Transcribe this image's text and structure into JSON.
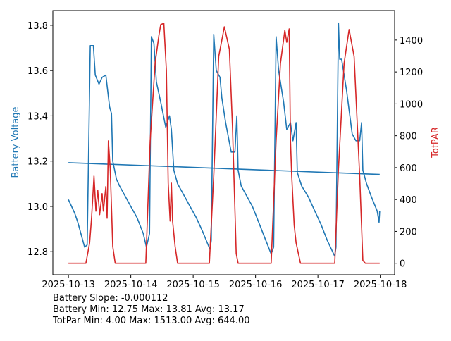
{
  "chart_data": {
    "type": "line",
    "title": "",
    "xlabel": "",
    "ylabel_left": "Battery Voltage",
    "ylabel_right": "TotPAR",
    "x_origin_date": "2025-10-13",
    "x_units": "days since 2025-10-13",
    "xlim": [
      -0.25,
      5.23
    ],
    "ylim_left": [
      12.698,
      13.865
    ],
    "ylim_right": [
      -72,
      1585
    ],
    "x_ticks": [
      {
        "value": 0,
        "label": "2025-10-13"
      },
      {
        "value": 1,
        "label": "2025-10-14"
      },
      {
        "value": 2,
        "label": "2025-10-15"
      },
      {
        "value": 3,
        "label": "2025-10-16"
      },
      {
        "value": 4,
        "label": "2025-10-17"
      },
      {
        "value": 5,
        "label": "2025-10-18"
      }
    ],
    "y_ticks_left": [
      {
        "value": 12.8,
        "label": "12.8"
      },
      {
        "value": 13.0,
        "label": "13.0"
      },
      {
        "value": 13.2,
        "label": "13.2"
      },
      {
        "value": 13.4,
        "label": "13.4"
      },
      {
        "value": 13.6,
        "label": "13.6"
      },
      {
        "value": 13.8,
        "label": "13.8"
      }
    ],
    "y_ticks_right": [
      {
        "value": 0,
        "label": "0"
      },
      {
        "value": 200,
        "label": "200"
      },
      {
        "value": 400,
        "label": "400"
      },
      {
        "value": 600,
        "label": "600"
      },
      {
        "value": 800,
        "label": "800"
      },
      {
        "value": 1000,
        "label": "1000"
      },
      {
        "value": 1200,
        "label": "1200"
      },
      {
        "value": 1400,
        "label": "1400"
      }
    ],
    "grid": false,
    "series": [
      {
        "name": "Battery Voltage",
        "axis": "left",
        "color": "#1f77b4",
        "points": [
          [
            0,
            13.03
          ],
          [
            0.05,
            13.0
          ],
          [
            0.1,
            12.97
          ],
          [
            0.15,
            12.93
          ],
          [
            0.2,
            12.88
          ],
          [
            0.26,
            12.82
          ],
          [
            0.3,
            12.83
          ],
          [
            0.35,
            13.71
          ],
          [
            0.4,
            13.71
          ],
          [
            0.43,
            13.58
          ],
          [
            0.49,
            13.54
          ],
          [
            0.54,
            13.57
          ],
          [
            0.6,
            13.58
          ],
          [
            0.66,
            13.44
          ],
          [
            0.69,
            13.41
          ],
          [
            0.71,
            13.2
          ],
          [
            0.77,
            13.12
          ],
          [
            0.82,
            13.09
          ],
          [
            0.9,
            13.05
          ],
          [
            1.0,
            13.0
          ],
          [
            1.1,
            12.95
          ],
          [
            1.2,
            12.88
          ],
          [
            1.25,
            12.82
          ],
          [
            1.3,
            12.88
          ],
          [
            1.33,
            13.75
          ],
          [
            1.37,
            13.72
          ],
          [
            1.41,
            13.55
          ],
          [
            1.48,
            13.46
          ],
          [
            1.56,
            13.35
          ],
          [
            1.62,
            13.4
          ],
          [
            1.65,
            13.34
          ],
          [
            1.69,
            13.16
          ],
          [
            1.75,
            13.1
          ],
          [
            1.85,
            13.05
          ],
          [
            1.95,
            13.0
          ],
          [
            2.05,
            12.95
          ],
          [
            2.15,
            12.89
          ],
          [
            2.27,
            12.81
          ],
          [
            2.29,
            12.85
          ],
          [
            2.33,
            13.76
          ],
          [
            2.37,
            13.6
          ],
          [
            2.43,
            13.57
          ],
          [
            2.46,
            13.48
          ],
          [
            2.52,
            13.37
          ],
          [
            2.61,
            13.24
          ],
          [
            2.67,
            13.24
          ],
          [
            2.7,
            13.4
          ],
          [
            2.72,
            13.16
          ],
          [
            2.77,
            13.09
          ],
          [
            2.85,
            13.05
          ],
          [
            2.95,
            13.0
          ],
          [
            3.05,
            12.93
          ],
          [
            3.15,
            12.86
          ],
          [
            3.25,
            12.79
          ],
          [
            3.29,
            12.82
          ],
          [
            3.33,
            13.75
          ],
          [
            3.37,
            13.6
          ],
          [
            3.45,
            13.46
          ],
          [
            3.5,
            13.34
          ],
          [
            3.56,
            13.37
          ],
          [
            3.6,
            13.29
          ],
          [
            3.65,
            13.37
          ],
          [
            3.67,
            13.15
          ],
          [
            3.74,
            13.09
          ],
          [
            3.85,
            13.04
          ],
          [
            3.95,
            12.98
          ],
          [
            4.05,
            12.92
          ],
          [
            4.15,
            12.85
          ],
          [
            4.27,
            12.78
          ],
          [
            4.29,
            12.82
          ],
          [
            4.33,
            13.81
          ],
          [
            4.35,
            13.65
          ],
          [
            4.38,
            13.65
          ],
          [
            4.46,
            13.51
          ],
          [
            4.55,
            13.32
          ],
          [
            4.61,
            13.29
          ],
          [
            4.67,
            13.29
          ],
          [
            4.7,
            13.37
          ],
          [
            4.72,
            13.16
          ],
          [
            4.78,
            13.1
          ],
          [
            4.86,
            13.04
          ],
          [
            4.95,
            12.98
          ],
          [
            4.98,
            12.93
          ],
          [
            4.99,
            12.98
          ]
        ]
      },
      {
        "name": "Battery Trend",
        "axis": "left",
        "color": "#1f77b4",
        "points": [
          [
            0,
            13.193
          ],
          [
            4.99,
            13.141
          ]
        ]
      },
      {
        "name": "TotPAR",
        "axis": "right",
        "color": "#d62728",
        "points": [
          [
            0,
            0
          ],
          [
            0.28,
            0
          ],
          [
            0.34,
            128
          ],
          [
            0.37,
            283
          ],
          [
            0.41,
            547
          ],
          [
            0.44,
            327
          ],
          [
            0.47,
            459
          ],
          [
            0.5,
            305
          ],
          [
            0.54,
            437
          ],
          [
            0.56,
            327
          ],
          [
            0.6,
            481
          ],
          [
            0.62,
            283
          ],
          [
            0.64,
            768
          ],
          [
            0.67,
            596
          ],
          [
            0.71,
            106
          ],
          [
            0.75,
            0
          ],
          [
            1.24,
            0
          ],
          [
            1.31,
            768
          ],
          [
            1.39,
            1254
          ],
          [
            1.45,
            1430
          ],
          [
            1.48,
            1497
          ],
          [
            1.53,
            1505
          ],
          [
            1.57,
            1210
          ],
          [
            1.6,
            503
          ],
          [
            1.63,
            265
          ],
          [
            1.65,
            503
          ],
          [
            1.67,
            265
          ],
          [
            1.71,
            106
          ],
          [
            1.75,
            0
          ],
          [
            2.26,
            0
          ],
          [
            2.33,
            547
          ],
          [
            2.41,
            1298
          ],
          [
            2.5,
            1483
          ],
          [
            2.58,
            1342
          ],
          [
            2.63,
            856
          ],
          [
            2.69,
            62
          ],
          [
            2.72,
            0
          ],
          [
            3.25,
            0
          ],
          [
            3.33,
            768
          ],
          [
            3.4,
            1254
          ],
          [
            3.47,
            1461
          ],
          [
            3.5,
            1386
          ],
          [
            3.54,
            1470
          ],
          [
            3.56,
            768
          ],
          [
            3.58,
            547
          ],
          [
            3.62,
            238
          ],
          [
            3.65,
            128
          ],
          [
            3.72,
            0
          ],
          [
            4.27,
            0
          ],
          [
            4.33,
            592
          ],
          [
            4.42,
            1254
          ],
          [
            4.5,
            1466
          ],
          [
            4.58,
            1298
          ],
          [
            4.67,
            547
          ],
          [
            4.72,
            18
          ],
          [
            4.76,
            0
          ],
          [
            4.99,
            0
          ]
        ]
      }
    ],
    "annotations": [
      "Battery Slope: -0.000112",
      "Battery Min: 12.75 Max: 13.81 Avg: 13.17",
      "TotPar Min: 4.00 Max: 1513.00 Avg: 644.00"
    ]
  }
}
